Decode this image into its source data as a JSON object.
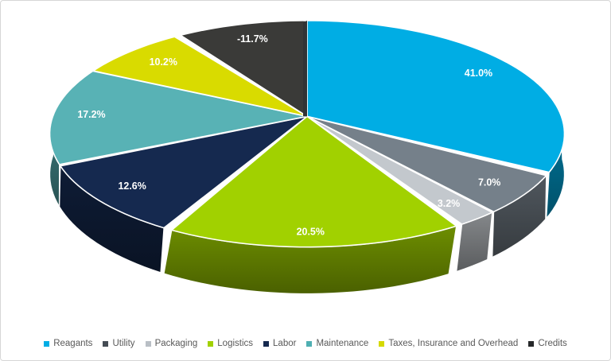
{
  "chart": {
    "background": "#FFFFFF",
    "frame_border_color": "#D6D6D6",
    "slice_label_color": "#FFFFFF",
    "slice_border_color": "#FFFFFF",
    "legend_text_color": "#595959",
    "front_cut_strip_color": "#313335"
  },
  "chart_data": {
    "type": "pie",
    "projection": "3d",
    "title": "",
    "legend_position": "bottom",
    "labels_format": "percent",
    "start_angle_deg": 0,
    "direction": "clockwise",
    "slices": [
      {
        "label": "Reagants",
        "value": 41.0,
        "display": "41.0%",
        "color": "#00ADE4",
        "legend_color": "#00ADE4"
      },
      {
        "label": "Utility",
        "value": 7.0,
        "display": "7.0%",
        "color": "#75808A",
        "legend_color": "#454C54"
      },
      {
        "label": "Packaging",
        "value": 3.2,
        "display": "3.2%",
        "color": "#C3C8CD",
        "legend_color": "#B9BFC5"
      },
      {
        "label": "Logistics",
        "value": 20.5,
        "display": "20.5%",
        "color": "#A1D100",
        "legend_color": "#A1D100"
      },
      {
        "label": "Labor",
        "value": 12.6,
        "display": "12.6%",
        "color": "#15294F",
        "legend_color": "#15294F"
      },
      {
        "label": "Maintenance",
        "value": 17.2,
        "display": "17.2%",
        "color": "#58B2B5",
        "legend_color": "#4FAFB2"
      },
      {
        "label": "Taxes, Insurance and Overhead",
        "value": 10.2,
        "display": "10.2%",
        "color": "#D9DB00",
        "legend_color": "#D5D900"
      },
      {
        "label": "Credits",
        "value": -11.7,
        "display": "-11.7%",
        "color": "#3A3A38",
        "legend_color": "#26282A"
      }
    ]
  }
}
